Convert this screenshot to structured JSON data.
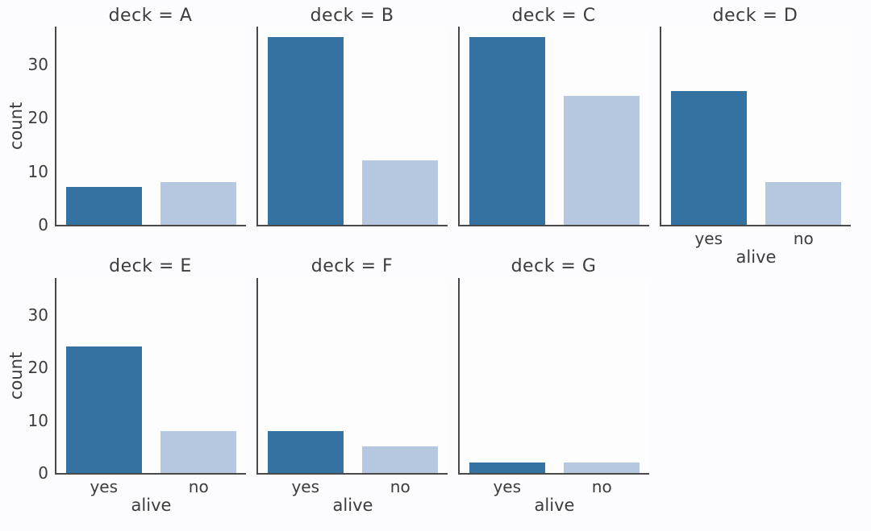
{
  "chart_data": {
    "type": "bar",
    "subtype": "faceted-countplot",
    "facet_variable": "deck",
    "x_variable": "alive",
    "categories": [
      "yes",
      "no"
    ],
    "xlabel": "alive",
    "ylabel": "count",
    "yticks": [
      0,
      10,
      20,
      30
    ],
    "ytick_labels": [
      "0",
      "10",
      "20",
      "30"
    ],
    "ylim": [
      0,
      37
    ],
    "grid": false,
    "legend": "none",
    "layout": {
      "rows": 2,
      "cols": 4,
      "col_wrap": 4
    },
    "facets": [
      {
        "title": "deck = A",
        "deck": "A",
        "values": {
          "yes": 7,
          "no": 8
        }
      },
      {
        "title": "deck = B",
        "deck": "B",
        "values": {
          "yes": 35,
          "no": 12
        }
      },
      {
        "title": "deck = C",
        "deck": "C",
        "values": {
          "yes": 35,
          "no": 24
        }
      },
      {
        "title": "deck = D",
        "deck": "D",
        "values": {
          "yes": 25,
          "no": 8
        }
      },
      {
        "title": "deck = E",
        "deck": "E",
        "values": {
          "yes": 24,
          "no": 8
        }
      },
      {
        "title": "deck = F",
        "deck": "F",
        "values": {
          "yes": 8,
          "no": 5
        }
      },
      {
        "title": "deck = G",
        "deck": "G",
        "values": {
          "yes": 2,
          "no": 2
        }
      }
    ],
    "colors": {
      "bar_yes": "#3372a1",
      "bar_no": "#b5c8e0",
      "text": "#3c3c3c",
      "spine": "#494949",
      "background": "#fcfcfe",
      "plot_background": "#fdfdfe"
    }
  }
}
